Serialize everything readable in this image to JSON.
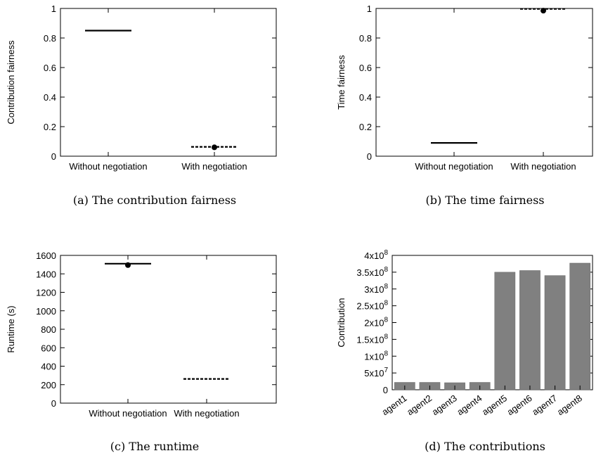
{
  "chart_data": [
    {
      "type": "box",
      "caption": "(a) The contribution fairness",
      "ylabel": "Contribution fairness",
      "ylim": [
        0,
        1
      ],
      "yticks": [
        "0",
        "0.2",
        "0.4",
        "0.6",
        "0.8",
        "1"
      ],
      "yticks_values": [
        0,
        0.2,
        0.4,
        0.6,
        0.8,
        1
      ],
      "categories": [
        "Without negotiation",
        "With negotiation"
      ],
      "series": [
        {
          "category": "Without negotiation",
          "median": 0.85,
          "dashed": false,
          "point": null
        },
        {
          "category": "With negotiation",
          "median": 0.063,
          "dashed": true,
          "point": 0.06
        }
      ]
    },
    {
      "type": "box",
      "caption": "(b) The time fairness",
      "ylabel": "Time fairness",
      "ylim": [
        0,
        1
      ],
      "yticks": [
        "0",
        "0.2",
        "0.4",
        "0.6",
        "0.8",
        "1"
      ],
      "yticks_values": [
        0,
        0.2,
        0.4,
        0.6,
        0.8,
        1
      ],
      "categories": [
        "Without negotiation",
        "With negotiation"
      ],
      "series": [
        {
          "category": "Without negotiation",
          "median": 0.09,
          "dashed": false,
          "point": null
        },
        {
          "category": "With negotiation",
          "median": 0.997,
          "dashed": true,
          "point": 0.985
        }
      ]
    },
    {
      "type": "box",
      "caption": "(c) The runtime",
      "ylabel": "Runtime (s)",
      "ylim": [
        0,
        1600
      ],
      "yticks": [
        "0",
        "200",
        "400",
        "600",
        "800",
        "1000",
        "1200",
        "1400",
        "1600"
      ],
      "yticks_values": [
        0,
        200,
        400,
        600,
        800,
        1000,
        1200,
        1400,
        1600
      ],
      "categories": [
        "Without negotiation",
        "With negotiation"
      ],
      "series": [
        {
          "category": "Without negotiation",
          "median": 1510,
          "dashed": false,
          "point": 1495
        },
        {
          "category": "With negotiation",
          "median": 262,
          "dashed": true,
          "point": null
        }
      ]
    },
    {
      "type": "bar",
      "caption": "(d) The contributions",
      "ylabel": "Contribution",
      "ylim": [
        0,
        400000000
      ],
      "yticks_values": [
        0,
        50000000,
        100000000,
        150000000,
        200000000,
        250000000,
        300000000,
        350000000,
        400000000
      ],
      "yticks": [
        {
          "mant": "0",
          "exp": ""
        },
        {
          "mant": "5x10",
          "exp": "7"
        },
        {
          "mant": "1x10",
          "exp": "8"
        },
        {
          "mant": "1.5x10",
          "exp": "8"
        },
        {
          "mant": "2x10",
          "exp": "8"
        },
        {
          "mant": "2.5x10",
          "exp": "8"
        },
        {
          "mant": "3x10",
          "exp": "8"
        },
        {
          "mant": "3.5x10",
          "exp": "8"
        },
        {
          "mant": "4x10",
          "exp": "8"
        }
      ],
      "categories": [
        "agent1",
        "agent2",
        "agent3",
        "agent4",
        "agent5",
        "agent6",
        "agent7",
        "agent8"
      ],
      "values": [
        22000000,
        22000000,
        21000000,
        22000000,
        350000000,
        355000000,
        340000000,
        377000000
      ],
      "bar_color": "#808080"
    }
  ]
}
